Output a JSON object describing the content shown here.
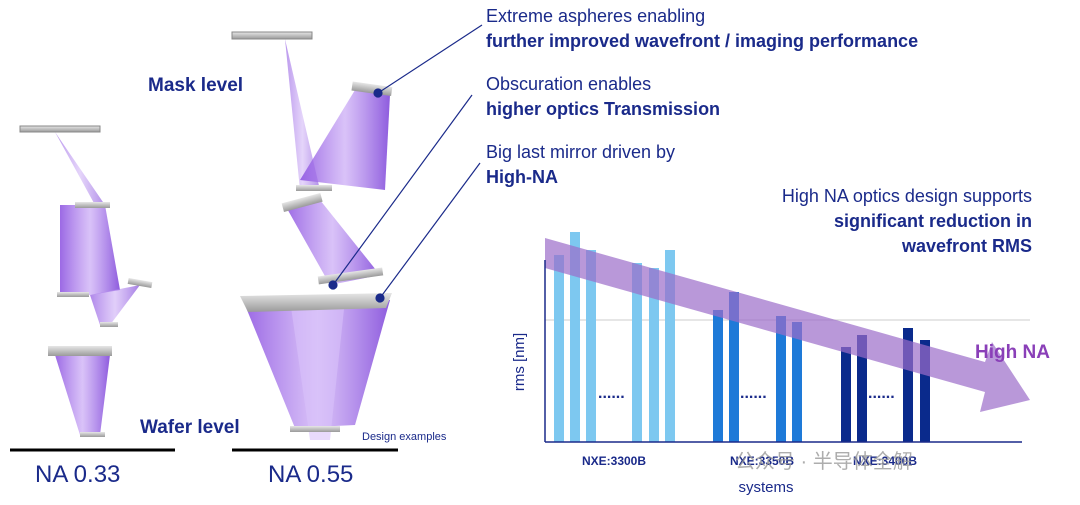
{
  "callouts": [
    {
      "line1": "Extreme aspheres enabling",
      "line2": "further improved wavefront / imaging performance"
    },
    {
      "line1": "Obscuration enables",
      "line2": "higher optics Transmission"
    },
    {
      "line1": "Big last mirror driven by",
      "line2": "High-NA"
    }
  ],
  "optics": {
    "mask_level": "Mask level",
    "wafer_level": "Wafer level",
    "design_examples": "Design examples",
    "na_left": "NA 0.33",
    "na_right": "NA 0.55"
  },
  "rms_panel": {
    "caption": [
      "High NA optics design supports",
      "significant reduction in",
      "wavefront RMS"
    ],
    "y_label": "rms [nm]",
    "x_label": "systems",
    "systems": [
      "NXE:3300B",
      "NXE:3350B",
      "NXE:3400B"
    ],
    "arrow_label": "High NA"
  },
  "watermark": "公众号 · 半导体全解"
}
